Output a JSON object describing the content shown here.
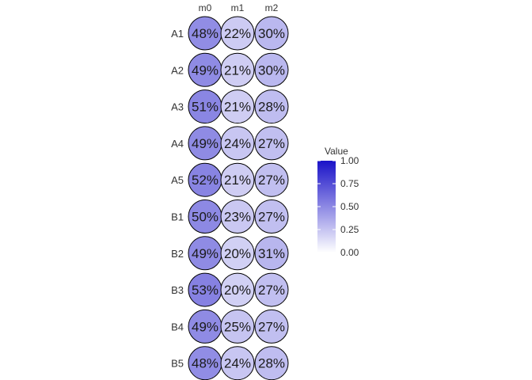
{
  "chart_data": {
    "type": "heatmap",
    "columns": [
      "m0",
      "m1",
      "m2"
    ],
    "rows": [
      "A1",
      "A2",
      "A3",
      "A4",
      "A5",
      "B1",
      "B2",
      "B3",
      "B4",
      "B5"
    ],
    "values": [
      [
        0.48,
        0.22,
        0.3
      ],
      [
        0.49,
        0.21,
        0.3
      ],
      [
        0.51,
        0.21,
        0.28
      ],
      [
        0.49,
        0.24,
        0.27
      ],
      [
        0.52,
        0.21,
        0.27
      ],
      [
        0.5,
        0.23,
        0.27
      ],
      [
        0.49,
        0.2,
        0.31
      ],
      [
        0.53,
        0.2,
        0.27
      ],
      [
        0.49,
        0.25,
        0.27
      ],
      [
        0.48,
        0.24,
        0.28
      ]
    ],
    "labels": [
      [
        "48%",
        "22%",
        "30%"
      ],
      [
        "49%",
        "21%",
        "30%"
      ],
      [
        "51%",
        "21%",
        "28%"
      ],
      [
        "49%",
        "24%",
        "27%"
      ],
      [
        "52%",
        "21%",
        "27%"
      ],
      [
        "50%",
        "23%",
        "27%"
      ],
      [
        "49%",
        "20%",
        "31%"
      ],
      [
        "53%",
        "20%",
        "27%"
      ],
      [
        "49%",
        "25%",
        "27%"
      ],
      [
        "48%",
        "24%",
        "28%"
      ]
    ],
    "legend": {
      "title": "Value",
      "ticks": [
        1.0,
        0.75,
        0.5,
        0.25,
        0.0
      ],
      "tick_labels": [
        "1.00",
        "0.75",
        "0.50",
        "0.25",
        "0.00"
      ],
      "range": [
        0,
        1
      ],
      "low_color": "#ffffff",
      "high_color": "#1a12c8",
      "placement": "right"
    },
    "grid": false
  }
}
